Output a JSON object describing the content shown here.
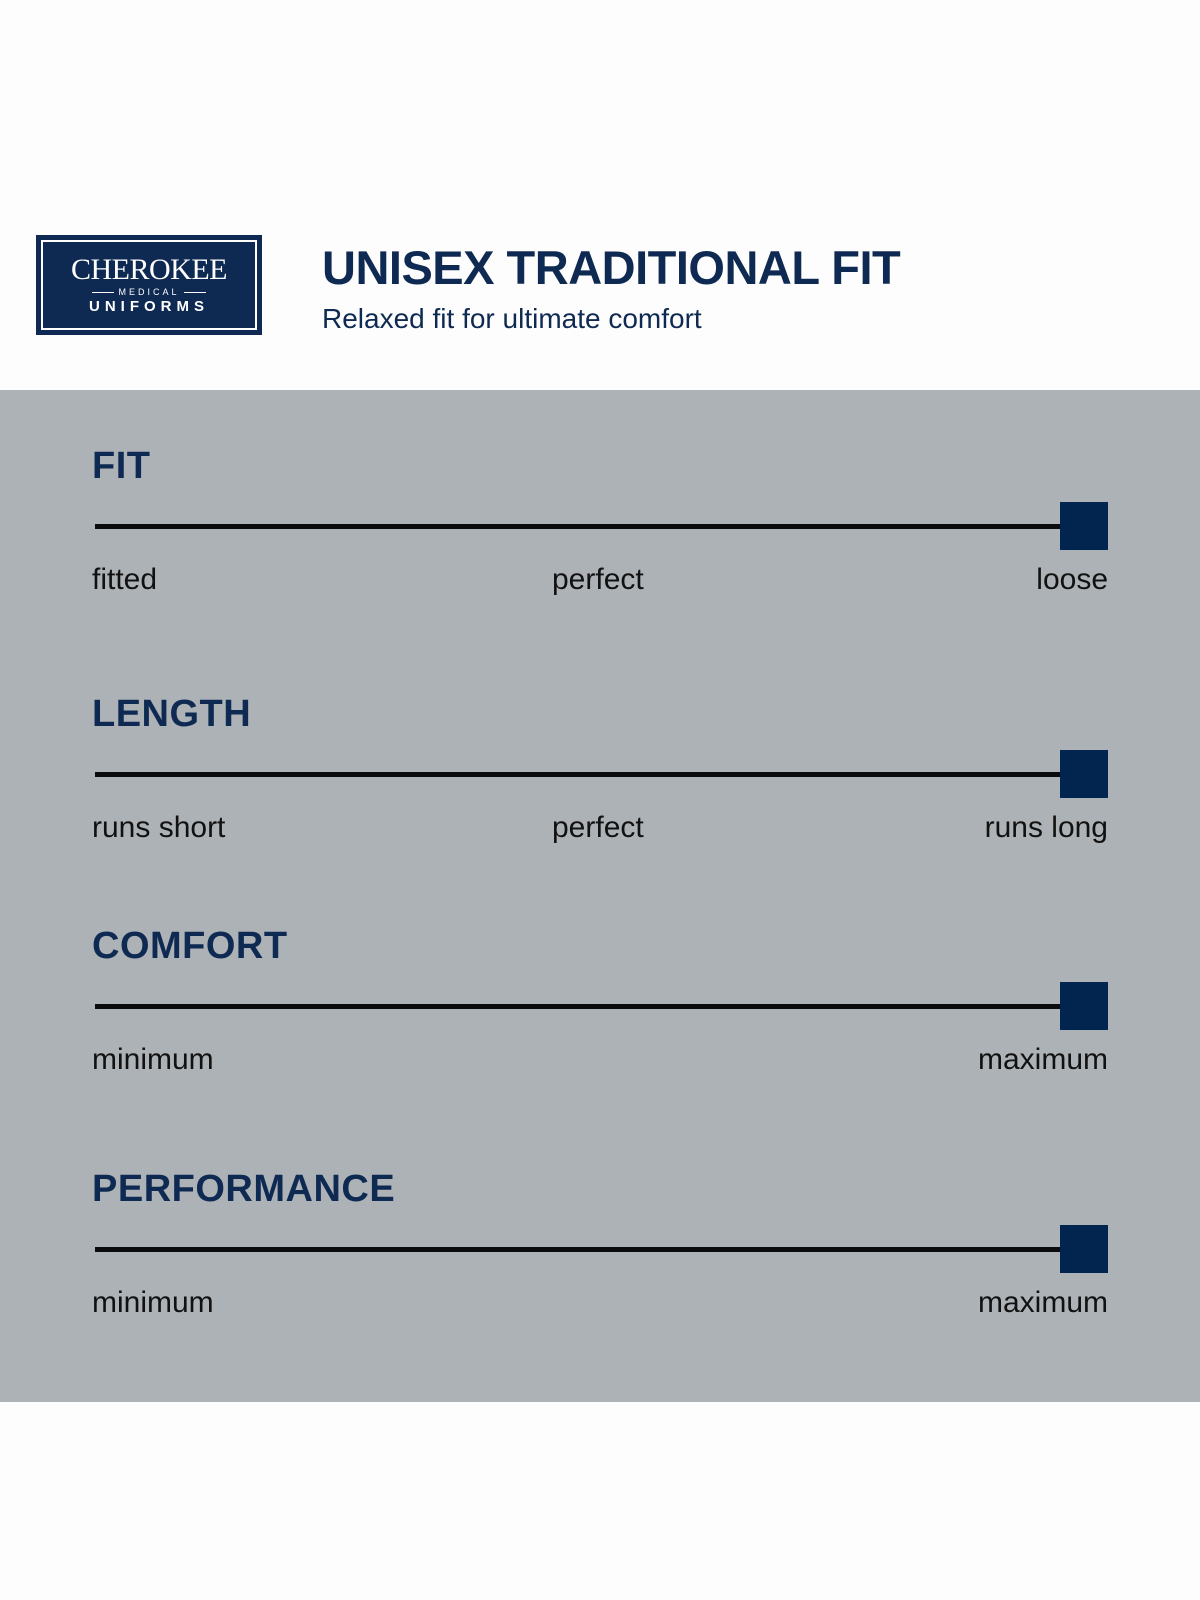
{
  "brand": {
    "logo_text": "CHEROKEE",
    "logo_sub": "MEDICAL",
    "logo_bottom": "UNIFORMS",
    "color": "#0e2a52"
  },
  "header": {
    "title": "UNISEX TRADITIONAL FIT",
    "subtitle": "Relaxed fit for ultimate comfort"
  },
  "colors": {
    "background": "#adb2b6",
    "accent": "#022550",
    "heading": "#0f2a52"
  },
  "scales": [
    {
      "title": "FIT",
      "left": "fitted",
      "middle": "perfect",
      "right": "loose",
      "value": 1.0
    },
    {
      "title": "LENGTH",
      "left": "runs short",
      "middle": "perfect",
      "right": "runs long",
      "value": 1.0
    },
    {
      "title": "COMFORT",
      "left": "minimum",
      "middle": null,
      "right": "maximum",
      "value": 1.0
    },
    {
      "title": "PERFORMANCE",
      "left": "minimum",
      "middle": null,
      "right": "maximum",
      "value": 1.0
    }
  ]
}
